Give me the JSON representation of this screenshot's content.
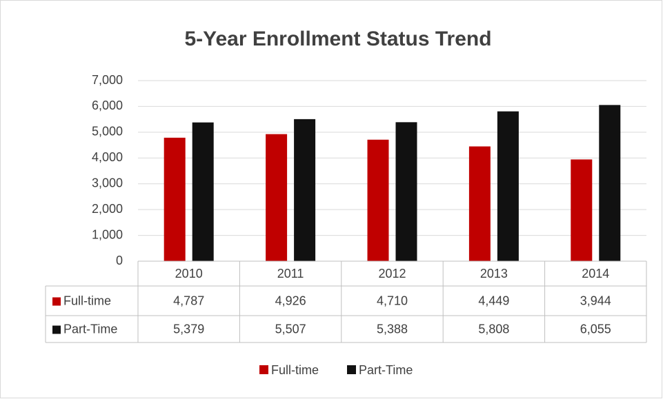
{
  "chart_data": {
    "type": "bar",
    "title": "5-Year Enrollment Status Trend",
    "categories": [
      "2010",
      "2011",
      "2012",
      "2013",
      "2014"
    ],
    "series": [
      {
        "name": "Full-time",
        "color": "#c00000",
        "values": [
          4787,
          4926,
          4710,
          4449,
          3944
        ],
        "value_labels": [
          "4,787",
          "4,926",
          "4,710",
          "4,449",
          "3,944"
        ]
      },
      {
        "name": "Part-Time",
        "color": "#111111",
        "values": [
          5379,
          5507,
          5388,
          5808,
          6055
        ],
        "value_labels": [
          "5,379",
          "5,507",
          "5,388",
          "5,808",
          "6,055"
        ]
      }
    ],
    "ylim": [
      0,
      7000
    ],
    "yticks": [
      0,
      {
        "value": 1000,
        "label": "1,000"
      },
      {
        "value": 2000,
        "label": "2,000"
      },
      {
        "value": 3000,
        "label": "3,000"
      },
      {
        "value": 4000,
        "label": "4,000"
      },
      {
        "value": 5000,
        "label": "5,000"
      },
      {
        "value": 6000,
        "label": "6,000"
      },
      {
        "value": 7000,
        "label": "7,000"
      }
    ],
    "grid": true,
    "legend": "bottom"
  }
}
